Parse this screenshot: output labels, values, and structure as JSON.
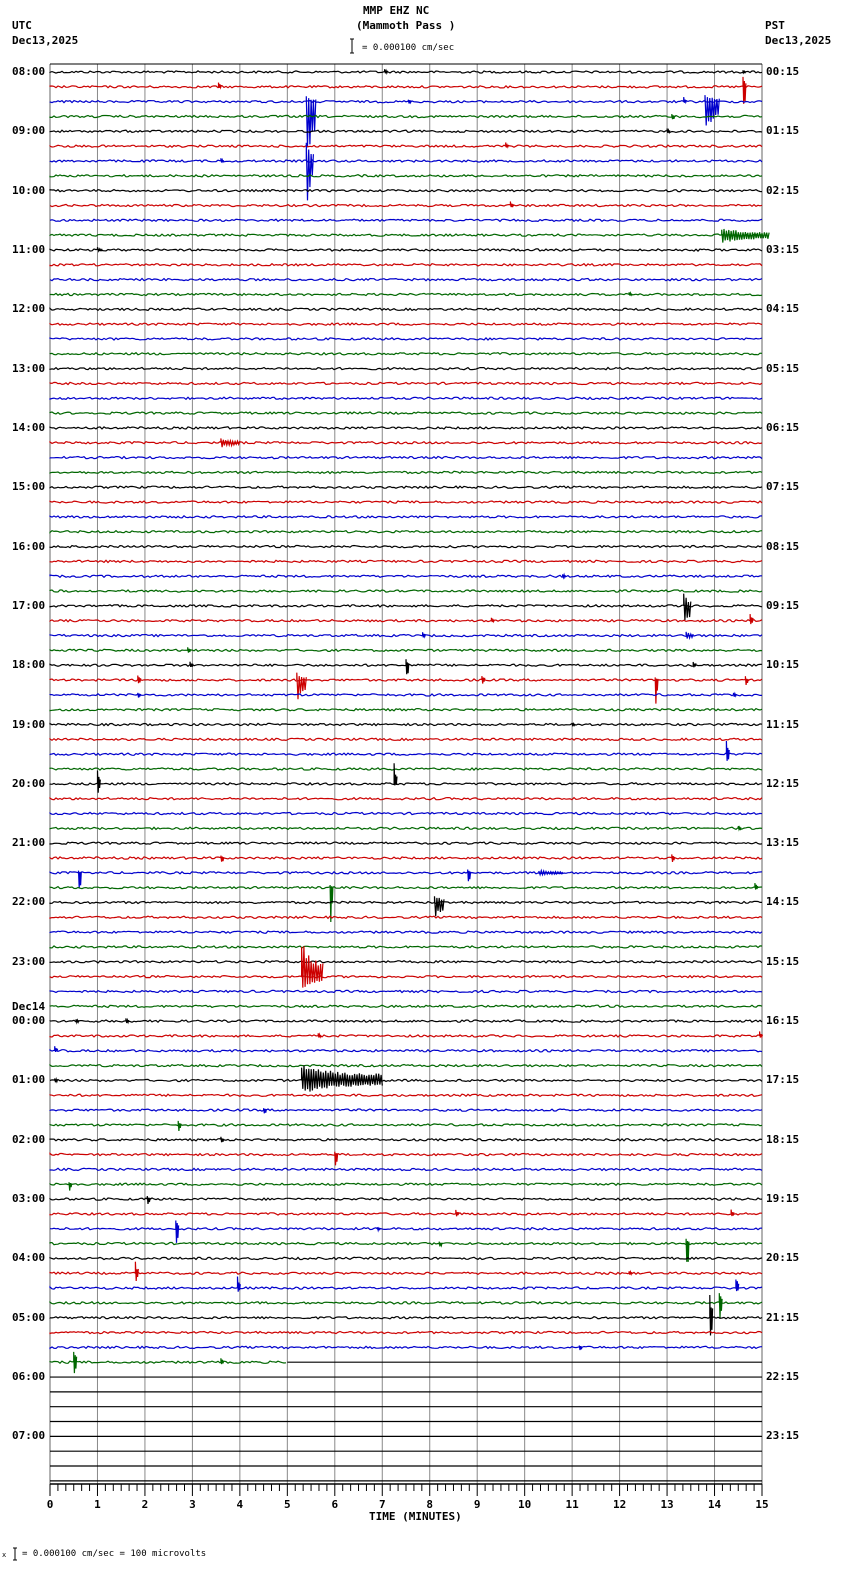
{
  "header": {
    "station": "MMP EHZ NC",
    "location": "(Mammoth Pass )",
    "left_tz": "UTC",
    "left_date": "Dec13,2025",
    "right_tz": "PST",
    "right_date": "Dec13,2025",
    "scale_text": "= 0.000100 cm/sec"
  },
  "footer": {
    "scale_text": "= 0.000100 cm/sec =     100 microvolts",
    "prefix": "x"
  },
  "colors": {
    "trace_cycle": [
      "#000000",
      "#cc0000",
      "#0000cc",
      "#006600"
    ],
    "grid": "#888888",
    "axis": "#000000"
  },
  "chart_data": {
    "type": "line",
    "title": "MMP EHZ NC (Mammoth Pass )",
    "xlabel": "TIME (MINUTES)",
    "ylabel": "",
    "xlim": [
      0,
      15
    ],
    "x_ticks": [
      "0",
      "1",
      "2",
      "3",
      "4",
      "5",
      "6",
      "7",
      "8",
      "9",
      "10",
      "11",
      "12",
      "13",
      "14",
      "15"
    ],
    "row_minutes": 15,
    "total_rows": 96,
    "data_rows_end_row": 87,
    "data_rows_end_minute": 5.0,
    "left_labels": [
      {
        "row": 0,
        "text": "08:00"
      },
      {
        "row": 4,
        "text": "09:00"
      },
      {
        "row": 8,
        "text": "10:00"
      },
      {
        "row": 12,
        "text": "11:00"
      },
      {
        "row": 16,
        "text": "12:00"
      },
      {
        "row": 20,
        "text": "13:00"
      },
      {
        "row": 24,
        "text": "14:00"
      },
      {
        "row": 28,
        "text": "15:00"
      },
      {
        "row": 32,
        "text": "16:00"
      },
      {
        "row": 36,
        "text": "17:00"
      },
      {
        "row": 40,
        "text": "18:00"
      },
      {
        "row": 44,
        "text": "19:00"
      },
      {
        "row": 48,
        "text": "20:00"
      },
      {
        "row": 52,
        "text": "21:00"
      },
      {
        "row": 56,
        "text": "22:00"
      },
      {
        "row": 60,
        "text": "23:00"
      },
      {
        "row": 64,
        "text": "00:00",
        "date": "Dec14"
      },
      {
        "row": 68,
        "text": "01:00"
      },
      {
        "row": 72,
        "text": "02:00"
      },
      {
        "row": 76,
        "text": "03:00"
      },
      {
        "row": 80,
        "text": "04:00"
      },
      {
        "row": 84,
        "text": "05:00"
      },
      {
        "row": 88,
        "text": "06:00"
      },
      {
        "row": 92,
        "text": "07:00"
      }
    ],
    "right_labels": [
      {
        "row": 0,
        "text": "00:15"
      },
      {
        "row": 4,
        "text": "01:15"
      },
      {
        "row": 8,
        "text": "02:15"
      },
      {
        "row": 12,
        "text": "03:15"
      },
      {
        "row": 16,
        "text": "04:15"
      },
      {
        "row": 20,
        "text": "05:15"
      },
      {
        "row": 24,
        "text": "06:15"
      },
      {
        "row": 28,
        "text": "07:15"
      },
      {
        "row": 32,
        "text": "08:15"
      },
      {
        "row": 36,
        "text": "09:15"
      },
      {
        "row": 40,
        "text": "10:15"
      },
      {
        "row": 44,
        "text": "11:15"
      },
      {
        "row": 48,
        "text": "12:15"
      },
      {
        "row": 52,
        "text": "13:15"
      },
      {
        "row": 56,
        "text": "14:15"
      },
      {
        "row": 60,
        "text": "15:15"
      },
      {
        "row": 64,
        "text": "16:15"
      },
      {
        "row": 68,
        "text": "17:15"
      },
      {
        "row": 72,
        "text": "18:15"
      },
      {
        "row": 76,
        "text": "19:15"
      },
      {
        "row": 80,
        "text": "20:15"
      },
      {
        "row": 84,
        "text": "21:15"
      },
      {
        "row": 88,
        "text": "22:15"
      },
      {
        "row": 92,
        "text": "23:15"
      }
    ],
    "events": [
      {
        "row": 0,
        "minute": 7.05,
        "up": 4,
        "down": 3
      },
      {
        "row": 0,
        "minute": 14.6,
        "up": 2,
        "down": 2
      },
      {
        "row": 1,
        "minute": 3.55,
        "up": 6,
        "down": 2
      },
      {
        "row": 1,
        "minute": 14.6,
        "up": 14,
        "down": 36
      },
      {
        "row": 2,
        "minute": 5.4,
        "up": 6,
        "down": 80,
        "dur": 0.2
      },
      {
        "row": 2,
        "minute": 13.8,
        "up": 8,
        "down": 44,
        "dur": 0.3
      },
      {
        "row": 2,
        "minute": 13.35,
        "up": 5,
        "down": 2
      },
      {
        "row": 2,
        "minute": 7.55,
        "up": 3,
        "down": 3
      },
      {
        "row": 3,
        "minute": 13.1,
        "up": 3,
        "down": 6
      },
      {
        "row": 4,
        "minute": 13.0,
        "up": 3,
        "down": 3
      },
      {
        "row": 5,
        "minute": 9.6,
        "up": 4,
        "down": 2
      },
      {
        "row": 6,
        "minute": 3.6,
        "up": 3,
        "down": 3
      },
      {
        "row": 6,
        "minute": 5.4,
        "up": 20,
        "down": 56,
        "dur": 0.15
      },
      {
        "row": 9,
        "minute": 9.7,
        "up": 4,
        "down": 4
      },
      {
        "row": 11,
        "minute": 14.15,
        "up": 8,
        "down": 10,
        "dur": 1.0
      },
      {
        "row": 12,
        "minute": 1.0,
        "up": 3,
        "down": 2,
        "dur": 0.1
      },
      {
        "row": 15,
        "minute": 12.2,
        "up": 3,
        "down": 2
      },
      {
        "row": 25,
        "minute": 3.6,
        "up": 5,
        "down": 6,
        "dur": 0.4
      },
      {
        "row": 34,
        "minute": 10.8,
        "up": 3,
        "down": 3
      },
      {
        "row": 36,
        "minute": 13.35,
        "up": 14,
        "down": 30,
        "dur": 0.15
      },
      {
        "row": 37,
        "minute": 14.75,
        "up": 8,
        "down": 6
      },
      {
        "row": 37,
        "minute": 9.3,
        "up": 3,
        "down": 3
      },
      {
        "row": 38,
        "minute": 7.85,
        "up": 4,
        "down": 3
      },
      {
        "row": 38,
        "minute": 13.4,
        "up": 5,
        "down": 6,
        "dur": 0.15
      },
      {
        "row": 39,
        "minute": 2.9,
        "up": 4,
        "down": 4
      },
      {
        "row": 40,
        "minute": 2.95,
        "up": 4,
        "down": 4
      },
      {
        "row": 40,
        "minute": 7.5,
        "up": 6,
        "down": 20
      },
      {
        "row": 40,
        "minute": 13.55,
        "up": 5,
        "down": 4
      },
      {
        "row": 41,
        "minute": 1.85,
        "up": 6,
        "down": 6
      },
      {
        "row": 41,
        "minute": 5.2,
        "up": 8,
        "down": 26,
        "dur": 0.2
      },
      {
        "row": 41,
        "minute": 9.1,
        "up": 6,
        "down": 6
      },
      {
        "row": 41,
        "minute": 12.75,
        "up": 3,
        "down": 40
      },
      {
        "row": 41,
        "minute": 14.65,
        "up": 4,
        "down": 10
      },
      {
        "row": 42,
        "minute": 1.85,
        "up": 3,
        "down": 4
      },
      {
        "row": 42,
        "minute": 14.4,
        "up": 3,
        "down": 3
      },
      {
        "row": 44,
        "minute": 11.0,
        "up": 2,
        "down": 3
      },
      {
        "row": 46,
        "minute": 14.25,
        "up": 18,
        "down": 16
      },
      {
        "row": 48,
        "minute": 7.25,
        "up": 28,
        "down": 3
      },
      {
        "row": 48,
        "minute": 1.0,
        "up": 16,
        "down": 14
      },
      {
        "row": 51,
        "minute": 14.5,
        "up": 3,
        "down": 2
      },
      {
        "row": 53,
        "minute": 3.6,
        "up": 3,
        "down": 8
      },
      {
        "row": 53,
        "minute": 13.1,
        "up": 4,
        "down": 8
      },
      {
        "row": 54,
        "minute": 0.6,
        "up": 3,
        "down": 30
      },
      {
        "row": 54,
        "minute": 8.8,
        "up": 4,
        "down": 16
      },
      {
        "row": 54,
        "minute": 10.3,
        "up": 3,
        "down": 3,
        "dur": 0.5
      },
      {
        "row": 55,
        "minute": 5.9,
        "up": 3,
        "down": 56
      },
      {
        "row": 55,
        "minute": 14.85,
        "up": 6,
        "down": 4
      },
      {
        "row": 56,
        "minute": 8.1,
        "up": 10,
        "down": 22,
        "dur": 0.2
      },
      {
        "row": 61,
        "minute": 5.3,
        "up": 38,
        "down": 14,
        "dur": 0.45
      },
      {
        "row": 64,
        "minute": 0.55,
        "up": 3,
        "down": 3
      },
      {
        "row": 64,
        "minute": 1.6,
        "up": 3,
        "down": 3
      },
      {
        "row": 65,
        "minute": 5.65,
        "up": 3,
        "down": 3
      },
      {
        "row": 65,
        "minute": 14.95,
        "up": 5,
        "down": 3
      },
      {
        "row": 66,
        "minute": 0.1,
        "up": 6,
        "down": 2
      },
      {
        "row": 68,
        "minute": 5.3,
        "up": 18,
        "down": 14,
        "dur": 1.7
      },
      {
        "row": 68,
        "minute": 0.1,
        "up": 3,
        "down": 3
      },
      {
        "row": 70,
        "minute": 4.5,
        "up": 3,
        "down": 8
      },
      {
        "row": 71,
        "minute": 2.7,
        "up": 4,
        "down": 10
      },
      {
        "row": 72,
        "minute": 3.6,
        "up": 3,
        "down": 6
      },
      {
        "row": 73,
        "minute": 6.0,
        "up": 3,
        "down": 24
      },
      {
        "row": 75,
        "minute": 0.4,
        "up": 3,
        "down": 10
      },
      {
        "row": 76,
        "minute": 2.05,
        "up": 4,
        "down": 8
      },
      {
        "row": 77,
        "minute": 8.55,
        "up": 5,
        "down": 4
      },
      {
        "row": 77,
        "minute": 14.35,
        "up": 5,
        "down": 4
      },
      {
        "row": 78,
        "minute": 2.65,
        "up": 12,
        "down": 26
      },
      {
        "row": 78,
        "minute": 6.9,
        "up": 2,
        "down": 3
      },
      {
        "row": 79,
        "minute": 8.2,
        "up": 2,
        "down": 6
      },
      {
        "row": 79,
        "minute": 13.4,
        "up": 6,
        "down": 44
      },
      {
        "row": 81,
        "minute": 1.8,
        "up": 12,
        "down": 12
      },
      {
        "row": 81,
        "minute": 12.2,
        "up": 3,
        "down": 3
      },
      {
        "row": 82,
        "minute": 3.95,
        "up": 14,
        "down": 8
      },
      {
        "row": 82,
        "minute": 14.45,
        "up": 14,
        "down": 6
      },
      {
        "row": 83,
        "minute": 14.1,
        "up": 16,
        "down": 26
      },
      {
        "row": 84,
        "minute": 13.9,
        "up": 26,
        "down": 36
      },
      {
        "row": 86,
        "minute": 11.15,
        "up": 3,
        "down": 6
      },
      {
        "row": 87,
        "minute": 0.5,
        "up": 16,
        "down": 22
      },
      {
        "row": 87,
        "minute": 3.6,
        "up": 6,
        "down": 4
      }
    ]
  }
}
